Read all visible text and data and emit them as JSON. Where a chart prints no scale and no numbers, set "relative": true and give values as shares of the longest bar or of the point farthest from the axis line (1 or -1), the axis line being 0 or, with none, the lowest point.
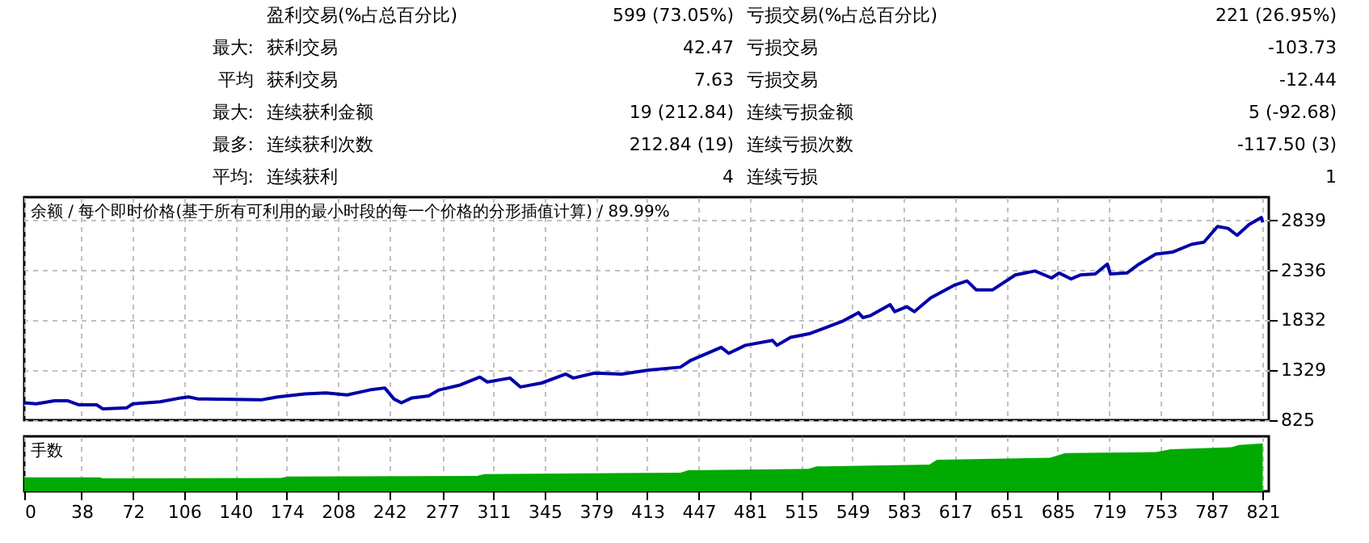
{
  "chart_data": [
    {
      "type": "other",
      "annotations": [
        "盈利交易(%占总百分比)",
        "599 (73.05%)",
        "亏损交易(%占总百分比)",
        "221 (26.95%)",
        "最大:",
        "获利交易",
        "42.47",
        "亏损交易",
        "-103.73",
        "平均",
        "获利交易",
        "7.63",
        "亏损交易",
        "-12.44",
        "最大:",
        "连续获利金额",
        "19 (212.84)",
        "连续亏损金额",
        "5 (-92.68)",
        "最多:",
        "连续获利次数",
        "212.84 (19)",
        "连续亏损次数",
        "-117.50 (3)",
        "平均:",
        "连续获利",
        "4",
        "连续亏损",
        "1"
      ]
    },
    {
      "type": "line",
      "title": "余额 / 每个即时价格(基于所有可利用的最小时段的每一个价格的分形插值计算) / 89.99%",
      "x": [
        0,
        8,
        20,
        29,
        36,
        48,
        52,
        68,
        72,
        90,
        104,
        109,
        115,
        157,
        168,
        186,
        200,
        214,
        229,
        239,
        245,
        250,
        257,
        268,
        275,
        289,
        302,
        307,
        322,
        329,
        343,
        359,
        364,
        378,
        396,
        414,
        435,
        442,
        462,
        467,
        478,
        496,
        499,
        508,
        521,
        542,
        553,
        556,
        561,
        574,
        577,
        585,
        590,
        601,
        617,
        625,
        631,
        642,
        657,
        670,
        681,
        686,
        694,
        700,
        710,
        718,
        720,
        731,
        738,
        750,
        761,
        774,
        782,
        791,
        798,
        804,
        812,
        820,
        821
      ],
      "series": [
        {
          "color": "#0000a8",
          "values": [
            1000,
            990,
            1020,
            1020,
            980,
            980,
            940,
            950,
            990,
            1010,
            1050,
            1060,
            1040,
            1030,
            1060,
            1090,
            1100,
            1080,
            1130,
            1150,
            1040,
            1000,
            1050,
            1070,
            1130,
            1180,
            1260,
            1210,
            1250,
            1160,
            1200,
            1290,
            1250,
            1300,
            1290,
            1330,
            1360,
            1430,
            1560,
            1500,
            1580,
            1630,
            1580,
            1660,
            1700,
            1820,
            1910,
            1860,
            1880,
            1990,
            1920,
            1970,
            1920,
            2060,
            2190,
            2230,
            2140,
            2140,
            2290,
            2330,
            2260,
            2310,
            2250,
            2290,
            2300,
            2400,
            2300,
            2310,
            2390,
            2500,
            2520,
            2600,
            2620,
            2780,
            2760,
            2690,
            2800,
            2870,
            2820
          ]
        }
      ],
      "xlim": [
        0,
        825
      ],
      "ylim": [
        825,
        3075
      ],
      "yticks": [
        825,
        1329,
        1832,
        2336,
        2839
      ],
      "xticks": [
        0,
        38,
        72,
        106,
        140,
        174,
        208,
        242,
        277,
        311,
        345,
        379,
        413,
        447,
        481,
        515,
        549,
        583,
        617,
        651,
        685,
        719,
        753,
        787,
        821
      ],
      "tick_labels": "y",
      "grid": true
    },
    {
      "type": "area",
      "title": "手数",
      "relative": true,
      "x": [
        0,
        50,
        52,
        170,
        175,
        300,
        305,
        435,
        440,
        520,
        525,
        600,
        605,
        680,
        690,
        750,
        760,
        800,
        805,
        821
      ],
      "series": [
        {
          "color": "#00aa00",
          "values": [
            0.29,
            0.29,
            0.27,
            0.28,
            0.31,
            0.32,
            0.36,
            0.39,
            0.44,
            0.47,
            0.52,
            0.56,
            0.66,
            0.7,
            0.8,
            0.82,
            0.88,
            0.92,
            0.97,
            1.0
          ]
        }
      ],
      "xlim": [
        0,
        825
      ],
      "xticks": [
        0,
        38,
        72,
        106,
        140,
        174,
        208,
        242,
        277,
        311,
        345,
        379,
        413,
        447,
        481,
        515,
        549,
        583,
        617,
        651,
        685,
        719,
        753,
        787,
        821
      ],
      "tick_labels": "x",
      "grid": "x"
    }
  ]
}
